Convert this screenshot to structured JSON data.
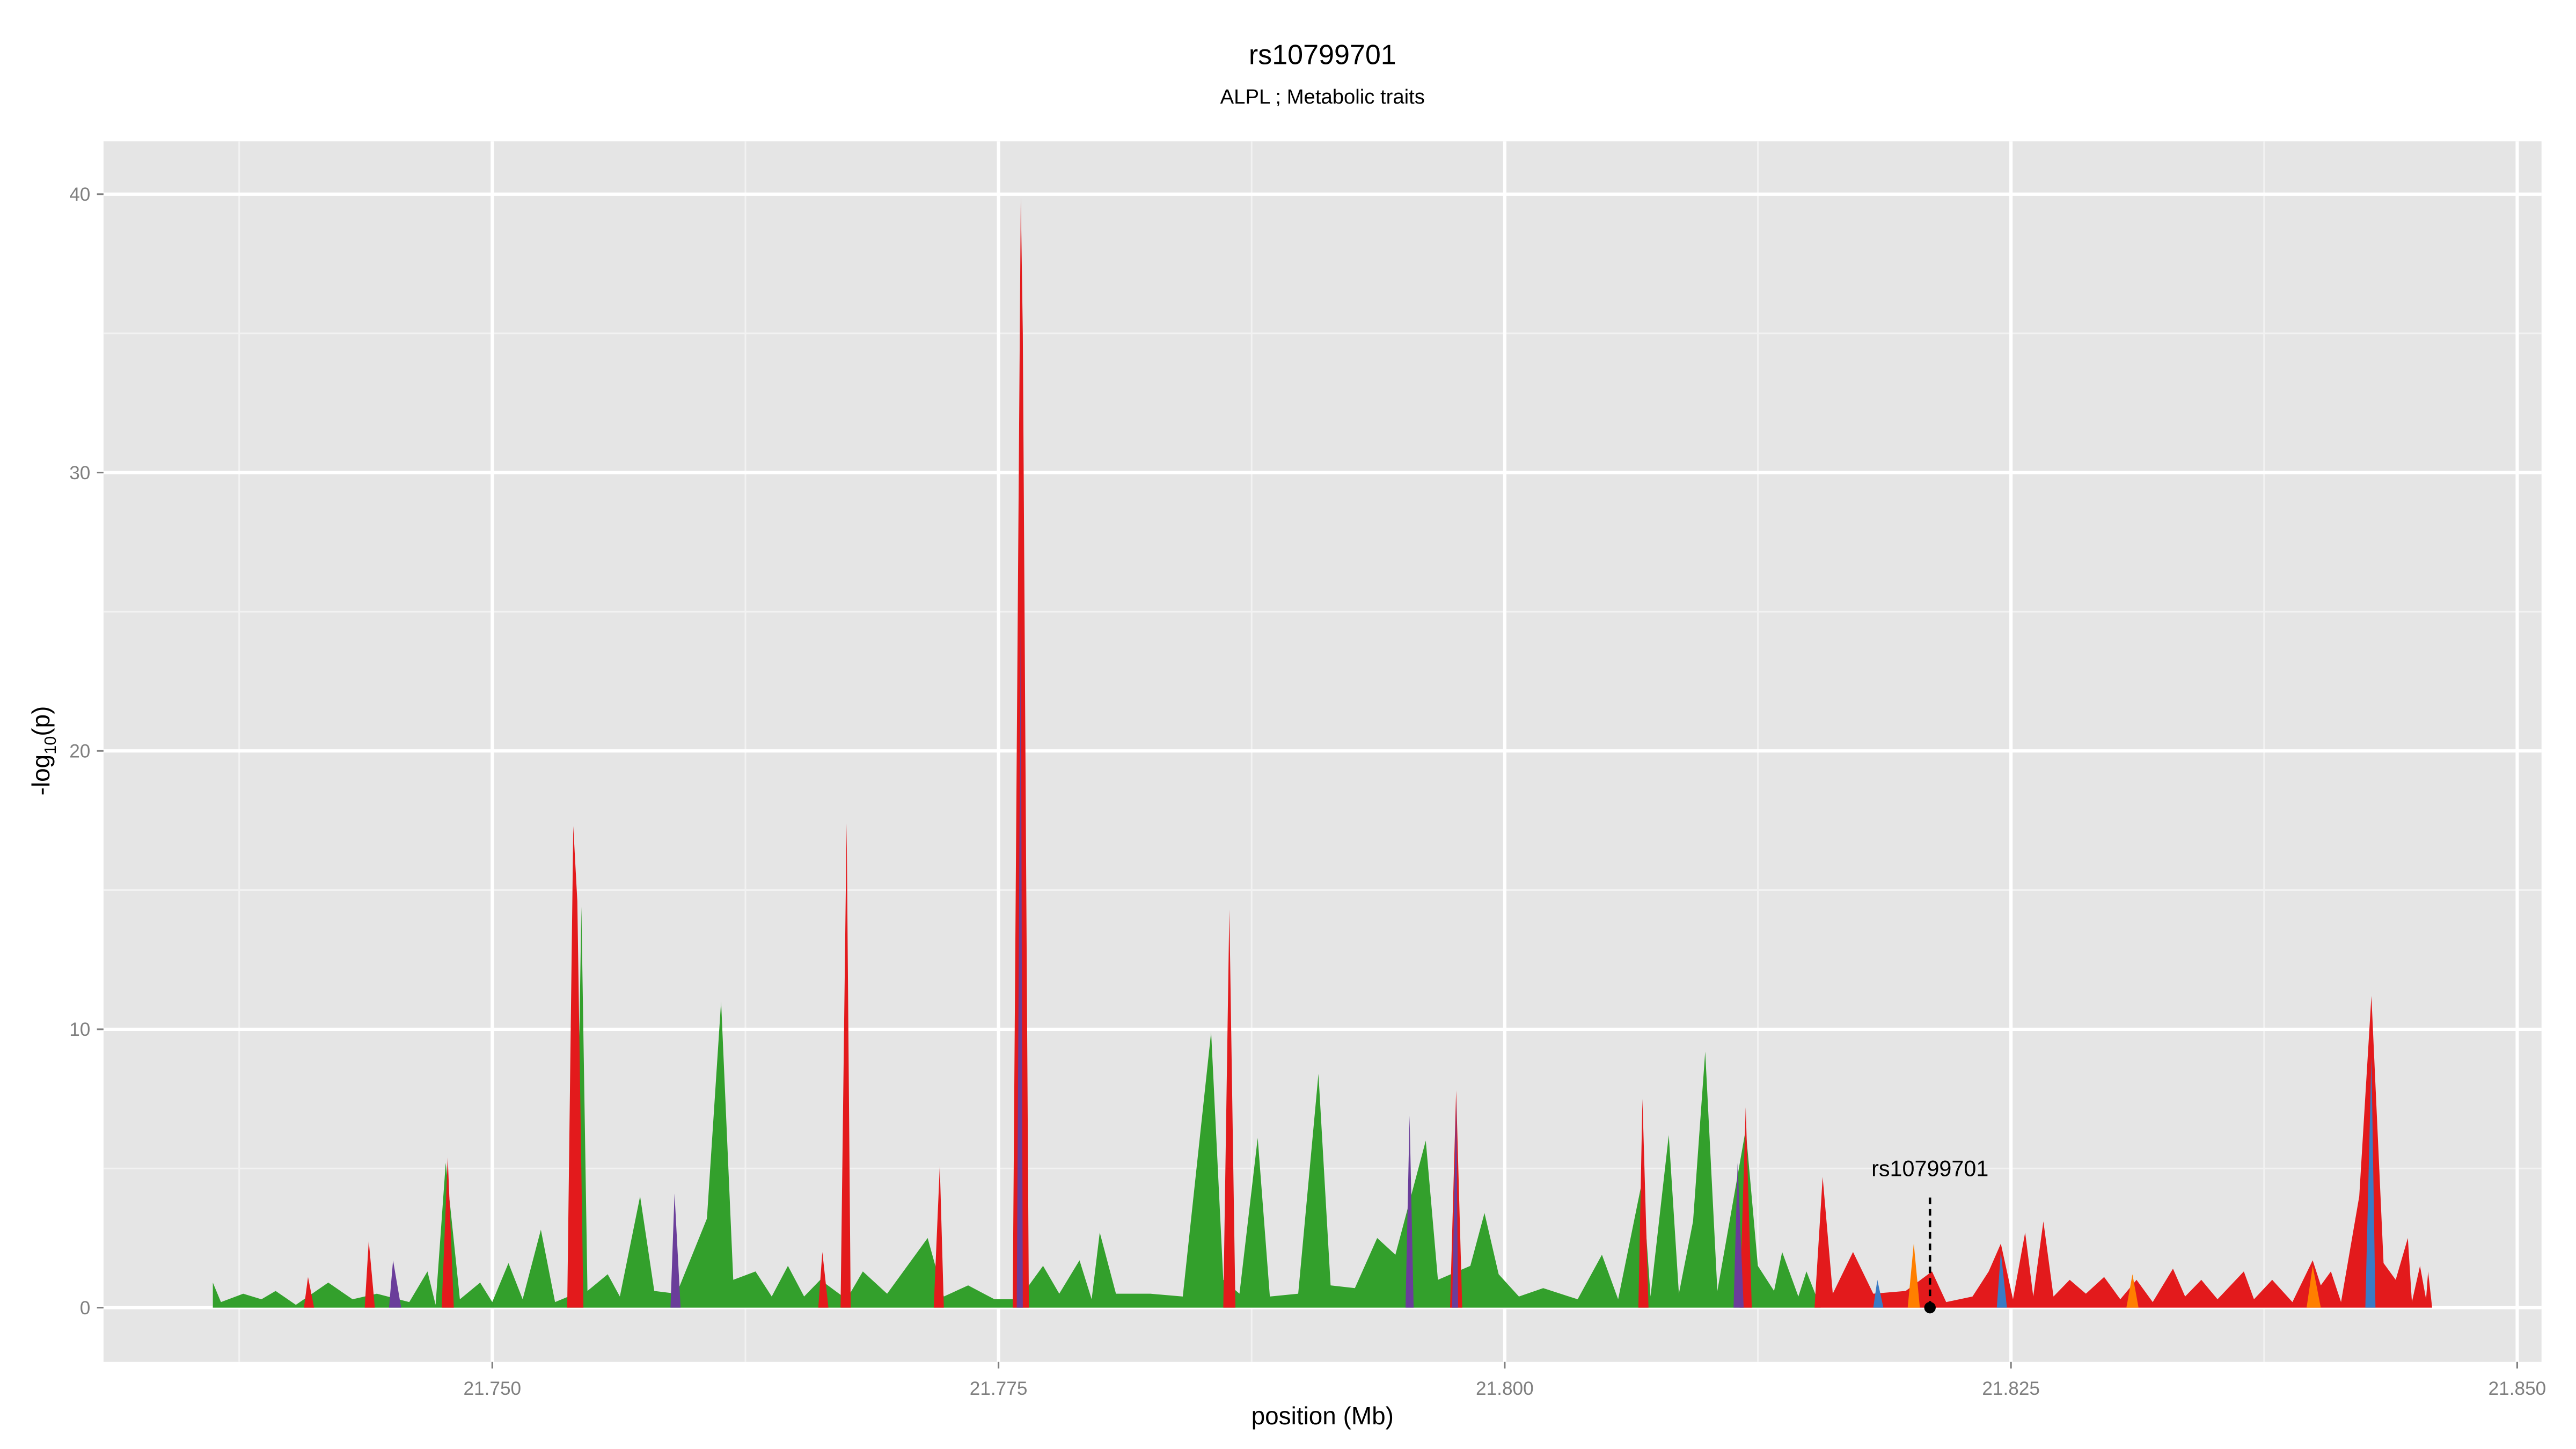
{
  "chart_data": {
    "type": "area",
    "title": "rs10799701",
    "subtitle": "ALPL ; Metabolic traits",
    "xlabel": "position (Mb)",
    "ylabel": {
      "main": "-log",
      "sub": "10",
      "tail": "(p)"
    },
    "xlim": [
      21.7308,
      21.8512
    ],
    "ylim": [
      -1.95,
      41.9
    ],
    "xticks": [
      {
        "value": 21.75,
        "label": "21.750"
      },
      {
        "value": 21.775,
        "label": "21.775"
      },
      {
        "value": 21.8,
        "label": "21.800"
      },
      {
        "value": 21.825,
        "label": "21.825"
      },
      {
        "value": 21.85,
        "label": "21.850"
      }
    ],
    "yticks": [
      0,
      10,
      20,
      30,
      40
    ],
    "xminor": [
      21.7375,
      21.7625,
      21.7875,
      21.8125,
      21.8375
    ],
    "yminor": [
      5,
      15,
      25,
      35
    ],
    "grid": true,
    "panel_color": "#e5e5e5",
    "series": [
      {
        "color": "#33a02c",
        "x": [
          21.7362,
          21.7366,
          21.7377,
          21.7386,
          21.7393,
          21.7403,
          21.7419,
          21.7431,
          21.7443,
          21.7459,
          21.7468,
          21.7472,
          21.7477,
          21.7484,
          21.7494,
          21.75,
          21.7508,
          21.7515,
          21.7524,
          21.7531,
          21.7541,
          21.7544,
          21.7547,
          21.7557,
          21.7563,
          21.7573,
          21.758,
          21.7591,
          21.7606,
          21.7613,
          21.7619,
          21.763,
          21.7638,
          21.7646,
          21.7654,
          21.7662,
          21.7675,
          21.7683,
          21.7695,
          21.7705,
          21.7715,
          21.7723,
          21.7735,
          21.7748,
          21.776,
          21.7772,
          21.778,
          21.779,
          21.7796,
          21.78,
          21.7808,
          21.7825,
          21.7841,
          21.7855,
          21.7861,
          21.7869,
          21.7878,
          21.7884,
          21.7898,
          21.7908,
          21.7914,
          21.7926,
          21.7937,
          21.7946,
          21.7961,
          21.7967,
          21.7983,
          21.799,
          21.7997,
          21.8007,
          21.8019,
          21.8036,
          21.8048,
          21.8056,
          21.8068,
          21.8072,
          21.8081,
          21.8086,
          21.8093,
          21.8099,
          21.8105,
          21.8119,
          21.8125,
          21.8133,
          21.8137,
          21.8145,
          21.8149,
          21.8156
        ],
        "values": [
          0.9,
          0.2,
          0.5,
          0.3,
          0.6,
          0.1,
          0.9,
          0.3,
          0.5,
          0.2,
          1.3,
          0.1,
          5.2,
          0.3,
          0.9,
          0.2,
          1.6,
          0.3,
          2.8,
          0.2,
          0.5,
          14.4,
          0.6,
          1.2,
          0.4,
          4.0,
          0.6,
          0.5,
          3.2,
          11.0,
          1.0,
          1.3,
          0.4,
          1.5,
          0.4,
          1.0,
          0.3,
          1.3,
          0.5,
          1.5,
          2.5,
          0.4,
          0.8,
          0.3,
          0.3,
          1.5,
          0.5,
          1.7,
          0.3,
          2.7,
          0.5,
          0.5,
          0.4,
          9.9,
          1.0,
          0.5,
          6.1,
          0.4,
          0.5,
          8.4,
          0.8,
          0.7,
          2.5,
          1.9,
          6.0,
          1.0,
          1.5,
          3.4,
          1.2,
          0.4,
          0.7,
          0.3,
          1.9,
          0.3,
          4.6,
          0.4,
          6.2,
          0.5,
          3.1,
          9.2,
          0.6,
          6.4,
          1.5,
          0.6,
          2.0,
          0.4,
          1.3,
          0
        ]
      },
      {
        "color": "#e31a1c",
        "x": [
          21.7407,
          21.7409,
          21.7412,
          21.7437,
          21.7439,
          21.7442,
          21.7475,
          21.7478,
          21.7481,
          21.7537,
          21.754,
          21.7542,
          21.7545,
          21.7661,
          21.7663,
          21.7666,
          21.7672,
          21.7675,
          21.7677,
          21.7718,
          21.7721,
          21.7723,
          21.7757,
          21.7761,
          21.7762,
          21.7765,
          21.7861,
          21.7864,
          21.7867,
          21.7973,
          21.7976,
          21.7979,
          21.8066,
          21.8068,
          21.8071,
          21.8116,
          21.8119,
          21.8122,
          21.8153,
          21.8157,
          21.8162,
          21.8172,
          21.8182,
          21.8198,
          21.8211,
          21.8218,
          21.8231,
          21.8239,
          21.8245,
          21.8251,
          21.8257,
          21.8261,
          21.8266,
          21.8271,
          21.8279,
          21.8287,
          21.8296,
          21.8304,
          21.8312,
          21.832,
          21.833,
          21.8336,
          21.8344,
          21.8352,
          21.8365,
          21.837,
          21.8379,
          21.8389,
          21.8399,
          21.8403,
          21.8408,
          21.8413,
          21.8422,
          21.8428,
          21.8434,
          21.844,
          21.8446,
          21.8448,
          21.8452,
          21.8455,
          21.8456,
          21.8458
        ],
        "values": [
          0,
          1.1,
          0,
          0,
          2.4,
          0,
          0,
          5.4,
          0,
          0,
          17.3,
          14.6,
          0,
          0,
          2.0,
          0,
          0,
          17.4,
          0,
          0,
          5.1,
          0,
          0,
          39.9,
          35,
          0,
          0,
          14.3,
          0,
          0,
          7.8,
          0,
          0,
          7.5,
          0,
          0,
          7.2,
          0,
          0,
          4.7,
          0.5,
          2.0,
          0.5,
          0.6,
          1.3,
          0.2,
          0.4,
          1.3,
          2.3,
          0.3,
          2.7,
          0.4,
          3.1,
          0.4,
          1.0,
          0.5,
          1.1,
          0.3,
          1.0,
          0.2,
          1.4,
          0.4,
          1.0,
          0.3,
          1.3,
          0.3,
          1.0,
          0.2,
          1.7,
          0.8,
          1.3,
          0.2,
          4.0,
          11.2,
          1.6,
          1.0,
          2.5,
          0.2,
          1.5,
          0.3,
          1.3,
          0
        ]
      },
      {
        "color": "#6a3d9a",
        "x": [
          21.7449,
          21.7451,
          21.7455,
          21.7588,
          21.759,
          21.7593,
          21.7759,
          21.7761,
          21.7762,
          21.7951,
          21.7953,
          21.7955,
          21.7974,
          21.7976,
          21.7977,
          21.8113,
          21.8115,
          21.8118
        ],
        "values": [
          0,
          1.7,
          0,
          0,
          4.1,
          0,
          0,
          25,
          0,
          0,
          6.9,
          0,
          0,
          7.5,
          0,
          0,
          5.2,
          0
        ]
      },
      {
        "color": "#3b7bc4",
        "x": [
          21.8182,
          21.8184,
          21.8187,
          21.8243,
          21.8245,
          21.8248,
          21.8425,
          21.8428,
          21.843
        ],
        "values": [
          0,
          1.0,
          0,
          0,
          2.0,
          0,
          0,
          9.0,
          0
        ]
      },
      {
        "color": "#ff7f00",
        "x": [
          21.8199,
          21.8202,
          21.8205,
          21.8307,
          21.831,
          21.8313,
          21.8396,
          21.8399,
          21.8403
        ],
        "values": [
          0,
          2.3,
          0,
          0,
          1.2,
          0,
          0,
          1.5,
          0
        ]
      }
    ],
    "annotation": {
      "text": "rs10799701",
      "x": 21.821,
      "y": 0
    }
  }
}
